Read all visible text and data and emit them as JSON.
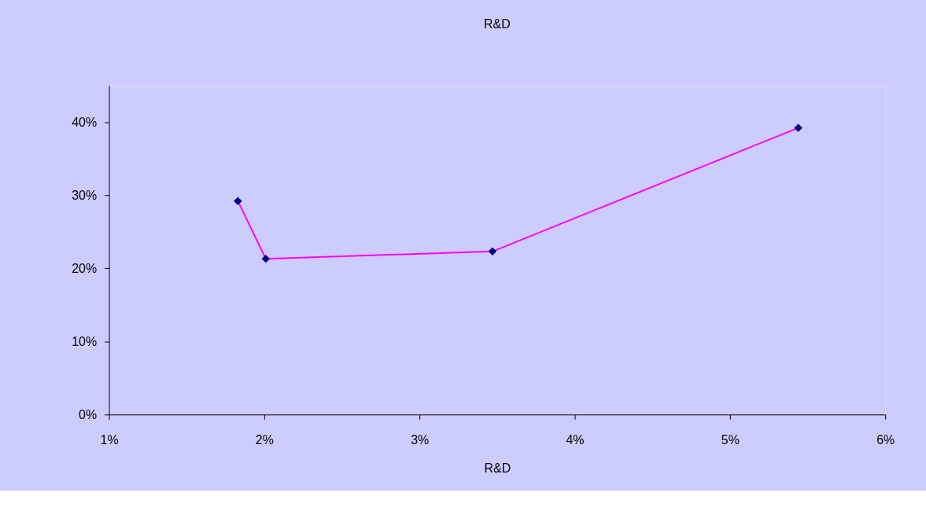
{
  "chart_data": {
    "type": "line",
    "title": "R&D",
    "xlabel": "R&D",
    "x": [
      1.83,
      2.01,
      3.47,
      5.44
    ],
    "series": [
      {
        "color": "#ff00ff",
        "colors": [
          "#000080",
          "#000080",
          "#000080",
          "#000080"
        ],
        "values": [
          29.2,
          21.3,
          22.3,
          39.2
        ]
      }
    ],
    "xlim": [
      1,
      6
    ],
    "xticks": [
      {
        "value": 1,
        "label": "1%"
      },
      {
        "value": 2,
        "label": "2%"
      },
      {
        "value": 3,
        "label": "3%"
      },
      {
        "value": 4,
        "label": "4%"
      },
      {
        "value": 5,
        "label": "5%"
      },
      {
        "value": 6,
        "label": "6%"
      }
    ],
    "ylim": [
      0,
      45
    ],
    "yticks": [
      {
        "value": 0,
        "label": "0%"
      },
      {
        "value": 10,
        "label": "10%"
      },
      {
        "value": 20,
        "label": "20%"
      },
      {
        "value": 30,
        "label": "30%"
      },
      {
        "value": 40,
        "label": "40%"
      }
    ],
    "grid": false,
    "marker": "diamond",
    "line_style": "solid"
  }
}
